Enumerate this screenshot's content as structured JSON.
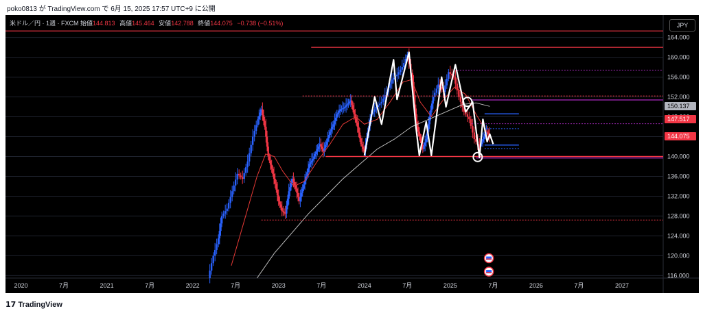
{
  "header": {
    "text": "poko0813 が TradingView.com で 6月 15, 2025 17:57 UTC+9 に公開"
  },
  "legend": {
    "symbol": "米ドル／円 · 1週 · FXCM",
    "open_label": "始値",
    "open": "144.813",
    "high_label": "高値",
    "high": "145.464",
    "low_label": "安値",
    "low": "142.788",
    "close_label": "終値",
    "close": "144.075",
    "change": "−0.738 (−0.51%)"
  },
  "currency_badge": "JPY",
  "footer": {
    "logo_mark": "𝟭𝟳",
    "logo_text": "TradingView"
  },
  "colors": {
    "background": "#000000",
    "up_candle": "#2962ff",
    "down_candle": "#f23645",
    "ma_short": "#e53935",
    "ma_long": "#bdbdbd",
    "wave": "#ffffff",
    "resistance": "#f23645",
    "support_blue": "#2962ff",
    "purple": "#9c27b0"
  },
  "chart_data": {
    "type": "candlestick",
    "title": "米ドル／円 · 1週 · FXCM",
    "y_axis_ticks": [
      164,
      160,
      156,
      152,
      148,
      144,
      140,
      136,
      132,
      128,
      124,
      120,
      116
    ],
    "y_axis_labels": [
      "164.000",
      "160.000",
      "156.000",
      "152.000",
      "148.000",
      "144.000",
      "140.000",
      "136.000",
      "132.000",
      "128.000",
      "124.000",
      "120.000",
      "116.000"
    ],
    "ylim": [
      115.5,
      168.5
    ],
    "x_axis_labels": [
      {
        "label": "2020",
        "t": 2020.0
      },
      {
        "label": "7月",
        "t": 2020.5
      },
      {
        "label": "2021",
        "t": 2021.0
      },
      {
        "label": "7月",
        "t": 2021.5
      },
      {
        "label": "2022",
        "t": 2022.0
      },
      {
        "label": "7月",
        "t": 2022.5
      },
      {
        "label": "2023",
        "t": 2023.0
      },
      {
        "label": "7月",
        "t": 2023.5
      },
      {
        "label": "2024",
        "t": 2024.0
      },
      {
        "label": "7月",
        "t": 2024.5
      },
      {
        "label": "2025",
        "t": 2025.0
      },
      {
        "label": "7月",
        "t": 2025.5
      },
      {
        "label": "2026",
        "t": 2026.0
      },
      {
        "label": "7月",
        "t": 2026.5
      },
      {
        "label": "2027",
        "t": 2027.0
      }
    ],
    "xlim": [
      2019.82,
      2027.48
    ],
    "price_tags": [
      {
        "value": 150.137,
        "label": "150.137",
        "bg": "#b2b5be",
        "fg": "#000000"
      },
      {
        "value": 147.517,
        "label": "147.517",
        "bg": "#f23645",
        "fg": "#ffffff"
      },
      {
        "value": 144.075,
        "label": "144.075",
        "bg": "#f23645",
        "fg": "#ffffff"
      }
    ],
    "price_path": [
      {
        "t": 2022.18,
        "p": 115.5
      },
      {
        "t": 2022.24,
        "p": 120.0
      },
      {
        "t": 2022.3,
        "p": 123.5
      },
      {
        "t": 2022.34,
        "p": 128.0
      },
      {
        "t": 2022.4,
        "p": 129.5
      },
      {
        "t": 2022.46,
        "p": 133.0
      },
      {
        "t": 2022.52,
        "p": 136.5
      },
      {
        "t": 2022.58,
        "p": 135.5
      },
      {
        "t": 2022.64,
        "p": 139.0
      },
      {
        "t": 2022.7,
        "p": 144.0
      },
      {
        "t": 2022.76,
        "p": 147.5
      },
      {
        "t": 2022.8,
        "p": 149.5
      },
      {
        "t": 2022.84,
        "p": 146.0
      },
      {
        "t": 2022.88,
        "p": 140.0
      },
      {
        "t": 2022.92,
        "p": 137.5
      },
      {
        "t": 2022.96,
        "p": 134.5
      },
      {
        "t": 2023.0,
        "p": 131.0
      },
      {
        "t": 2023.04,
        "p": 129.0
      },
      {
        "t": 2023.08,
        "p": 128.5
      },
      {
        "t": 2023.12,
        "p": 133.0
      },
      {
        "t": 2023.16,
        "p": 135.5
      },
      {
        "t": 2023.2,
        "p": 133.5
      },
      {
        "t": 2023.24,
        "p": 131.0
      },
      {
        "t": 2023.28,
        "p": 133.5
      },
      {
        "t": 2023.32,
        "p": 136.0
      },
      {
        "t": 2023.36,
        "p": 138.5
      },
      {
        "t": 2023.4,
        "p": 139.5
      },
      {
        "t": 2023.44,
        "p": 141.0
      },
      {
        "t": 2023.48,
        "p": 142.5
      },
      {
        "t": 2023.52,
        "p": 141.0
      },
      {
        "t": 2023.56,
        "p": 143.0
      },
      {
        "t": 2023.6,
        "p": 145.0
      },
      {
        "t": 2023.64,
        "p": 146.5
      },
      {
        "t": 2023.68,
        "p": 148.5
      },
      {
        "t": 2023.72,
        "p": 149.5
      },
      {
        "t": 2023.76,
        "p": 149.8
      },
      {
        "t": 2023.8,
        "p": 150.5
      },
      {
        "t": 2023.84,
        "p": 151.3
      },
      {
        "t": 2023.88,
        "p": 148.5
      },
      {
        "t": 2023.92,
        "p": 146.0
      },
      {
        "t": 2023.96,
        "p": 142.5
      },
      {
        "t": 2024.0,
        "p": 141.0
      },
      {
        "t": 2024.04,
        "p": 145.0
      },
      {
        "t": 2024.08,
        "p": 148.5
      },
      {
        "t": 2024.14,
        "p": 150.0
      },
      {
        "t": 2024.2,
        "p": 151.0
      },
      {
        "t": 2024.26,
        "p": 153.0
      },
      {
        "t": 2024.32,
        "p": 155.5
      },
      {
        "t": 2024.38,
        "p": 156.5
      },
      {
        "t": 2024.44,
        "p": 158.0
      },
      {
        "t": 2024.5,
        "p": 160.5
      },
      {
        "t": 2024.56,
        "p": 155.0
      },
      {
        "t": 2024.6,
        "p": 147.0
      },
      {
        "t": 2024.64,
        "p": 144.0
      },
      {
        "t": 2024.68,
        "p": 141.5
      },
      {
        "t": 2024.72,
        "p": 143.5
      },
      {
        "t": 2024.76,
        "p": 148.0
      },
      {
        "t": 2024.8,
        "p": 152.0
      },
      {
        "t": 2024.86,
        "p": 154.5
      },
      {
        "t": 2024.92,
        "p": 153.0
      },
      {
        "t": 2024.98,
        "p": 157.0
      },
      {
        "t": 2025.04,
        "p": 156.0
      },
      {
        "t": 2025.1,
        "p": 152.0
      },
      {
        "t": 2025.16,
        "p": 149.0
      },
      {
        "t": 2025.22,
        "p": 147.5
      },
      {
        "t": 2025.28,
        "p": 143.5
      },
      {
        "t": 2025.34,
        "p": 142.0
      },
      {
        "t": 2025.38,
        "p": 143.5
      },
      {
        "t": 2025.42,
        "p": 145.0
      },
      {
        "t": 2025.46,
        "p": 144.1
      }
    ],
    "ma_short_path": [
      {
        "t": 2022.45,
        "p": 118.0
      },
      {
        "t": 2022.6,
        "p": 127.0
      },
      {
        "t": 2022.75,
        "p": 136.0
      },
      {
        "t": 2022.85,
        "p": 140.5
      },
      {
        "t": 2022.95,
        "p": 140.0
      },
      {
        "t": 2023.05,
        "p": 137.0
      },
      {
        "t": 2023.18,
        "p": 134.0
      },
      {
        "t": 2023.3,
        "p": 135.0
      },
      {
        "t": 2023.45,
        "p": 139.0
      },
      {
        "t": 2023.6,
        "p": 142.5
      },
      {
        "t": 2023.75,
        "p": 146.5
      },
      {
        "t": 2023.9,
        "p": 148.0
      },
      {
        "t": 2024.0,
        "p": 146.5
      },
      {
        "t": 2024.15,
        "p": 147.5
      },
      {
        "t": 2024.3,
        "p": 151.0
      },
      {
        "t": 2024.45,
        "p": 155.0
      },
      {
        "t": 2024.55,
        "p": 155.5
      },
      {
        "t": 2024.65,
        "p": 151.0
      },
      {
        "t": 2024.78,
        "p": 148.0
      },
      {
        "t": 2024.9,
        "p": 151.0
      },
      {
        "t": 2025.05,
        "p": 154.0
      },
      {
        "t": 2025.18,
        "p": 152.5
      },
      {
        "t": 2025.3,
        "p": 148.5
      },
      {
        "t": 2025.46,
        "p": 144.0
      }
    ],
    "ma_long_path": [
      {
        "t": 2022.75,
        "p": 115.5
      },
      {
        "t": 2022.95,
        "p": 120.5
      },
      {
        "t": 2023.15,
        "p": 124.5
      },
      {
        "t": 2023.35,
        "p": 128.5
      },
      {
        "t": 2023.55,
        "p": 132.0
      },
      {
        "t": 2023.75,
        "p": 135.5
      },
      {
        "t": 2023.95,
        "p": 138.5
      },
      {
        "t": 2024.15,
        "p": 141.5
      },
      {
        "t": 2024.35,
        "p": 143.5
      },
      {
        "t": 2024.55,
        "p": 146.0
      },
      {
        "t": 2024.75,
        "p": 147.5
      },
      {
        "t": 2024.95,
        "p": 149.0
      },
      {
        "t": 2025.15,
        "p": 150.5
      },
      {
        "t": 2025.3,
        "p": 150.8
      },
      {
        "t": 2025.46,
        "p": 150.1
      }
    ],
    "wave_path": [
      {
        "t": 2024.0,
        "p": 140.2
      },
      {
        "t": 2024.12,
        "p": 152.0
      },
      {
        "t": 2024.2,
        "p": 146.5
      },
      {
        "t": 2024.34,
        "p": 159.5
      },
      {
        "t": 2024.38,
        "p": 151.5
      },
      {
        "t": 2024.52,
        "p": 161.0
      },
      {
        "t": 2024.6,
        "p": 146.0
      },
      {
        "t": 2024.64,
        "p": 140.2
      },
      {
        "t": 2024.72,
        "p": 147.0
      },
      {
        "t": 2024.78,
        "p": 140.2
      },
      {
        "t": 2024.9,
        "p": 156.0
      },
      {
        "t": 2024.95,
        "p": 150.0
      },
      {
        "t": 2025.06,
        "p": 158.5
      },
      {
        "t": 2025.18,
        "p": 149.0
      },
      {
        "t": 2025.26,
        "p": 151.0
      },
      {
        "t": 2025.34,
        "p": 139.8
      },
      {
        "t": 2025.38,
        "p": 147.5
      },
      {
        "t": 2025.43,
        "p": 143.0
      },
      {
        "t": 2025.46,
        "p": 144.5
      },
      {
        "t": 2025.5,
        "p": 142.5
      }
    ],
    "hlines": [
      {
        "p": 165.3,
        "t1": 2019.82,
        "t2": 2027.48,
        "color": "#f23645",
        "dash": "",
        "w": 1.2
      },
      {
        "p": 162.0,
        "t1": 2023.38,
        "t2": 2027.48,
        "color": "#f23645",
        "dash": "",
        "w": 1.2
      },
      {
        "p": 157.4,
        "t1": 2025.08,
        "t2": 2027.48,
        "color": "#9c27b0",
        "dash": "2,2",
        "w": 1
      },
      {
        "p": 152.2,
        "t1": 2023.28,
        "t2": 2027.48,
        "color": "#f23645",
        "dash": "2,2",
        "w": 1
      },
      {
        "p": 151.4,
        "t1": 2025.24,
        "t2": 2027.48,
        "color": "#9c27b0",
        "dash": "",
        "w": 1.4
      },
      {
        "p": 148.6,
        "t1": 2025.4,
        "t2": 2025.8,
        "color": "#2962ff",
        "dash": "",
        "w": 1.4
      },
      {
        "p": 146.6,
        "t1": 2025.25,
        "t2": 2027.48,
        "color": "#9c27b0",
        "dash": "2,2",
        "w": 1
      },
      {
        "p": 145.6,
        "t1": 2025.4,
        "t2": 2025.8,
        "color": "#2962ff",
        "dash": "2,2",
        "w": 1
      },
      {
        "p": 142.3,
        "t1": 2025.4,
        "t2": 2025.8,
        "color": "#2962ff",
        "dash": "",
        "w": 1.4
      },
      {
        "p": 141.6,
        "t1": 2025.4,
        "t2": 2025.8,
        "color": "#2962ff",
        "dash": "2,2",
        "w": 1
      },
      {
        "p": 140.0,
        "t1": 2023.55,
        "t2": 2027.48,
        "color": "#f23645",
        "dash": "",
        "w": 1.4
      },
      {
        "p": 139.7,
        "t1": 2025.3,
        "t2": 2027.48,
        "color": "#9c27b0",
        "dash": "",
        "w": 1.4
      },
      {
        "p": 127.2,
        "t1": 2022.8,
        "t2": 2027.48,
        "color": "#f23645",
        "dash": "2,2",
        "w": 1
      }
    ],
    "circles": [
      {
        "t": 2025.2,
        "p": 151.0
      },
      {
        "t": 2025.32,
        "p": 139.9
      }
    ],
    "event_markers": [
      {
        "t": 2025.45,
        "p": 119.5
      },
      {
        "t": 2025.45,
        "p": 116.8
      }
    ]
  }
}
